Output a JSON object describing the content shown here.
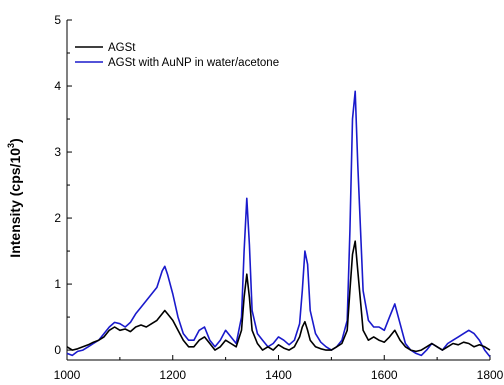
{
  "chart_data": {
    "type": "line",
    "title": "",
    "xlabel": "",
    "ylabel_main": "Intensity (cps/10",
    "ylabel_sup": "3",
    "ylabel_close": ")",
    "xlim": [
      1000,
      1800
    ],
    "ylim": [
      -0.15,
      5
    ],
    "x_ticks": [
      1000,
      1200,
      1400,
      1600,
      1800
    ],
    "x_tick_labels": [
      "1000",
      "1200",
      "1400",
      "1600",
      "1800"
    ],
    "y_ticks": [
      0,
      1,
      2,
      3,
      4,
      5
    ],
    "y_tick_labels": [
      "0",
      "1",
      "2",
      "3",
      "4",
      "5"
    ],
    "grid": false,
    "legend_position": "top-left",
    "series": [
      {
        "name": "AGSt",
        "color": "#000000",
        "x": [
          1000,
          1010,
          1020,
          1030,
          1040,
          1050,
          1060,
          1070,
          1080,
          1090,
          1100,
          1110,
          1120,
          1130,
          1140,
          1150,
          1160,
          1170,
          1180,
          1185,
          1190,
          1200,
          1210,
          1220,
          1230,
          1240,
          1250,
          1260,
          1270,
          1280,
          1290,
          1300,
          1310,
          1320,
          1330,
          1335,
          1340,
          1345,
          1350,
          1360,
          1370,
          1380,
          1390,
          1400,
          1410,
          1420,
          1430,
          1440,
          1445,
          1450,
          1455,
          1460,
          1470,
          1480,
          1490,
          1500,
          1510,
          1520,
          1530,
          1535,
          1540,
          1545,
          1550,
          1560,
          1570,
          1580,
          1590,
          1600,
          1610,
          1620,
          1630,
          1640,
          1650,
          1660,
          1670,
          1680,
          1690,
          1700,
          1710,
          1720,
          1730,
          1740,
          1750,
          1760,
          1770,
          1780,
          1790,
          1800
        ],
        "y": [
          0.05,
          0.0,
          0.02,
          0.05,
          0.08,
          0.12,
          0.15,
          0.2,
          0.3,
          0.35,
          0.3,
          0.32,
          0.28,
          0.35,
          0.38,
          0.35,
          0.4,
          0.45,
          0.55,
          0.6,
          0.55,
          0.45,
          0.3,
          0.15,
          0.05,
          0.05,
          0.15,
          0.2,
          0.1,
          0.0,
          0.05,
          0.15,
          0.1,
          0.05,
          0.3,
          0.8,
          1.15,
          0.8,
          0.3,
          0.1,
          0.0,
          0.05,
          0.0,
          0.08,
          0.03,
          0.0,
          0.05,
          0.2,
          0.35,
          0.43,
          0.3,
          0.15,
          0.05,
          0.02,
          0.0,
          0.0,
          0.05,
          0.1,
          0.3,
          0.9,
          1.45,
          1.65,
          1.2,
          0.3,
          0.15,
          0.2,
          0.15,
          0.12,
          0.2,
          0.3,
          0.15,
          0.05,
          0.0,
          -0.02,
          0.0,
          0.05,
          0.1,
          0.05,
          0.0,
          0.05,
          0.1,
          0.08,
          0.12,
          0.1,
          0.05,
          0.08,
          0.05,
          0.0
        ]
      },
      {
        "name": "AGSt with AuNP in water/acetone",
        "color": "#1a1acc",
        "x": [
          1000,
          1010,
          1020,
          1030,
          1040,
          1050,
          1060,
          1070,
          1080,
          1090,
          1100,
          1110,
          1120,
          1130,
          1140,
          1150,
          1160,
          1170,
          1180,
          1185,
          1190,
          1200,
          1210,
          1220,
          1230,
          1240,
          1250,
          1260,
          1270,
          1280,
          1290,
          1300,
          1310,
          1320,
          1330,
          1335,
          1340,
          1345,
          1350,
          1360,
          1370,
          1380,
          1390,
          1400,
          1410,
          1420,
          1430,
          1440,
          1445,
          1450,
          1455,
          1460,
          1470,
          1480,
          1490,
          1500,
          1510,
          1520,
          1530,
          1535,
          1540,
          1545,
          1550,
          1560,
          1570,
          1580,
          1590,
          1600,
          1610,
          1620,
          1630,
          1640,
          1650,
          1660,
          1670,
          1680,
          1690,
          1700,
          1710,
          1720,
          1730,
          1740,
          1750,
          1760,
          1770,
          1780,
          1790,
          1800
        ],
        "y": [
          -0.05,
          -0.08,
          -0.02,
          0.0,
          0.05,
          0.1,
          0.15,
          0.25,
          0.35,
          0.42,
          0.4,
          0.35,
          0.42,
          0.55,
          0.65,
          0.75,
          0.85,
          0.95,
          1.2,
          1.27,
          1.15,
          0.85,
          0.5,
          0.25,
          0.15,
          0.15,
          0.3,
          0.35,
          0.15,
          0.05,
          0.15,
          0.3,
          0.2,
          0.1,
          0.5,
          1.5,
          2.3,
          1.6,
          0.6,
          0.25,
          0.15,
          0.05,
          0.1,
          0.2,
          0.15,
          0.08,
          0.15,
          0.4,
          0.9,
          1.5,
          1.3,
          0.6,
          0.25,
          0.12,
          0.05,
          0.0,
          0.05,
          0.15,
          0.45,
          1.8,
          3.5,
          3.92,
          2.8,
          0.9,
          0.45,
          0.35,
          0.35,
          0.3,
          0.5,
          0.7,
          0.4,
          0.1,
          0.0,
          -0.05,
          -0.08,
          0.0,
          0.1,
          0.05,
          0.0,
          0.1,
          0.15,
          0.2,
          0.25,
          0.3,
          0.25,
          0.15,
          0.0,
          -0.1
        ]
      }
    ]
  }
}
